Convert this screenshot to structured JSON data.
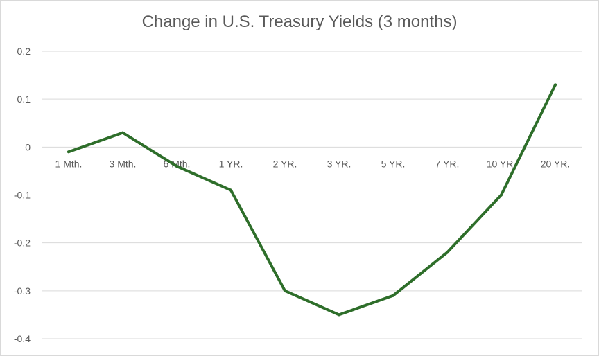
{
  "chart_data": {
    "type": "line",
    "title": "Change in U.S. Treasury Yields (3 months)",
    "xlabel": "",
    "ylabel": "",
    "categories": [
      "1 Mth.",
      "3 Mth.",
      "6 Mth.",
      "1 YR.",
      "2 YR.",
      "3 YR.",
      "5 YR.",
      "7 YR.",
      "10 YR.",
      "20 YR."
    ],
    "series": [
      {
        "values": [
          -0.01,
          0.03,
          -0.04,
          -0.09,
          -0.3,
          -0.35,
          -0.31,
          -0.22,
          -0.1,
          0.13
        ],
        "color": "#2e6e2a"
      }
    ],
    "y_ticks": [
      "0.2",
      "0.1",
      "0",
      "-0.1",
      "-0.2",
      "-0.3",
      "-0.4"
    ],
    "y_tick_values": [
      0.2,
      0.1,
      0,
      -0.1,
      -0.2,
      -0.3,
      -0.4
    ],
    "ylim": [
      -0.4,
      0.2
    ],
    "grid": true,
    "legend": "none"
  }
}
